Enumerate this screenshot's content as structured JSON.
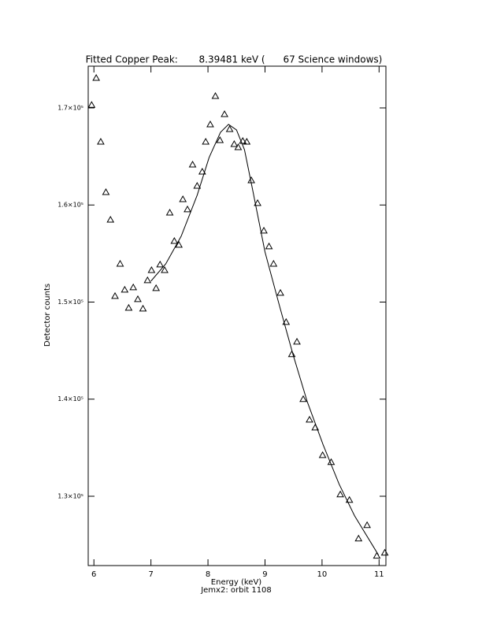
{
  "chart_data": {
    "type": "scatter",
    "title": "Fitted Copper Peak:       8.39481 keV (      67 Science windows)",
    "x_label": "Energy (keV)",
    "subtitle": "Jemx2: orbit 1108",
    "y_label": "Detector counts",
    "xlim": [
      5.9,
      11.12
    ],
    "ylim": [
      122860,
      174300
    ],
    "xticks": [
      6,
      7,
      8,
      9,
      10,
      11
    ],
    "yticks": [
      {
        "value": 130000,
        "label": "1.3×10⁵"
      },
      {
        "value": 140000,
        "label": "1.4×10⁵"
      },
      {
        "value": 150000,
        "label": "1.5×10⁵"
      },
      {
        "value": 160000,
        "label": "1.6×10⁵"
      },
      {
        "value": 170000,
        "label": "1.7×10⁵"
      }
    ],
    "series": [
      {
        "style": "markers",
        "marker": "triangle",
        "color": "#000000",
        "x": [
          5.96,
          6.04,
          6.12,
          6.21,
          6.29,
          6.37,
          6.46,
          6.54,
          6.61,
          6.69,
          6.77,
          6.86,
          6.94,
          7.01,
          7.09,
          7.16,
          7.24,
          7.33,
          7.41,
          7.49,
          7.56,
          7.64,
          7.73,
          7.81,
          7.9,
          7.96,
          8.04,
          8.13,
          8.21,
          8.29,
          8.38,
          8.46,
          8.53,
          8.61,
          8.68,
          8.76,
          8.87,
          8.98,
          9.07,
          9.15,
          9.27,
          9.37,
          9.47,
          9.56,
          9.67,
          9.78,
          9.88,
          10.01,
          10.16,
          10.32,
          10.48,
          10.64,
          10.79,
          10.96,
          11.1
        ],
        "values": [
          170300,
          173080,
          166510,
          161320,
          158480,
          150620,
          153940,
          151270,
          149400,
          151510,
          150290,
          149320,
          152240,
          153290,
          151430,
          153860,
          153290,
          159210,
          156290,
          155890,
          160590,
          159540,
          164160,
          161970,
          163430,
          166510,
          168300,
          171220,
          166670,
          169350,
          167810,
          166270,
          165940,
          166590,
          166510,
          162540,
          160190,
          157350,
          155730,
          153940,
          150940,
          147940,
          144620,
          145910,
          140000,
          137880,
          137070,
          134230,
          133510,
          130180,
          129610,
          125640,
          127020,
          123860,
          124180
        ]
      },
      {
        "style": "line",
        "color": "#000000",
        "x": [
          7.0,
          7.26,
          7.53,
          7.81,
          8.02,
          8.22,
          8.36,
          8.5,
          8.64,
          8.78,
          9.0,
          9.26,
          9.49,
          9.74,
          10.02,
          10.3,
          10.57,
          10.99
        ],
        "values": [
          152160,
          153940,
          156780,
          161000,
          164890,
          167490,
          168300,
          167730,
          165700,
          161650,
          155160,
          149480,
          144620,
          139750,
          135290,
          131240,
          127990,
          123940
        ]
      }
    ]
  }
}
